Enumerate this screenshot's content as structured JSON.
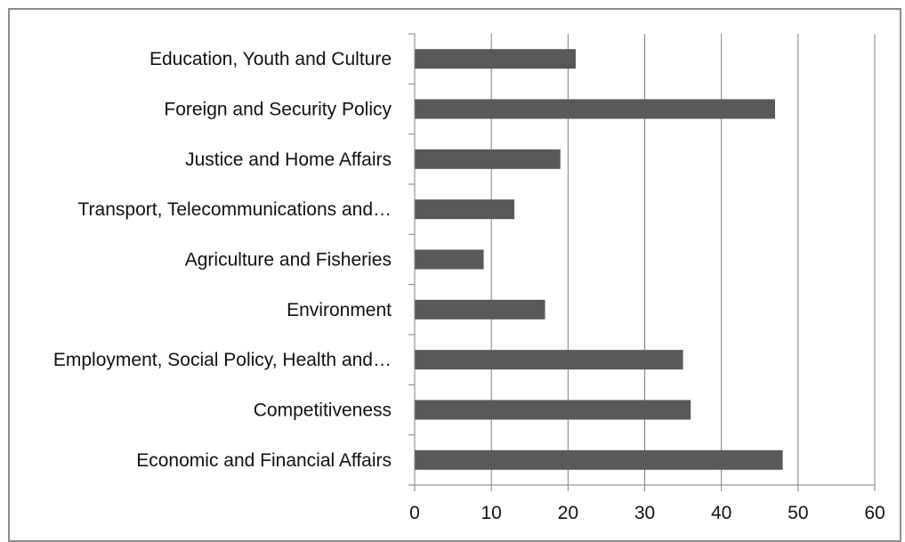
{
  "chart_data": {
    "type": "bar",
    "orientation": "horizontal",
    "categories": [
      "Education, Youth and Culture",
      "Foreign and Security Policy",
      "Justice and Home Affairs",
      "Transport, Telecommunications and…",
      "Agriculture and Fisheries",
      "Environment",
      "Employment, Social Policy, Health and…",
      "Competitiveness",
      "Economic and Financial Affairs"
    ],
    "values": [
      21,
      47,
      19,
      13,
      9,
      17,
      35,
      36,
      48
    ],
    "title": "",
    "xlabel": "",
    "ylabel": "",
    "xlim": [
      0,
      60
    ],
    "x_ticks": [
      "0",
      "10",
      "20",
      "30",
      "40",
      "50",
      "60"
    ],
    "grid": "vertical",
    "legend": "none",
    "bar_color": "#595959",
    "grid_color": "#7f7f7f"
  }
}
